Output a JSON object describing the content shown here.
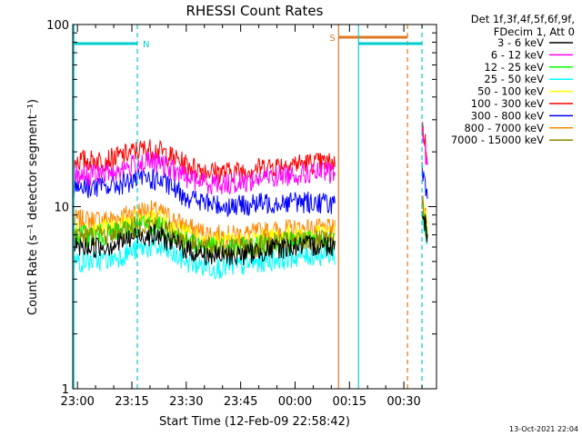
{
  "chart_data": {
    "type": "line",
    "title": "RHESSI Count Rates",
    "xlabel": "Start Time (12-Feb-09 22:58:42)",
    "ylabel": "Count Rate (s⁻¹ detector segment⁻¹)",
    "y_scale": "log",
    "ylim": [
      1,
      100
    ],
    "xlim": [
      "22:58:42",
      "00:39:00"
    ],
    "x_ticks": [
      "23:00",
      "23:15",
      "23:30",
      "23:45",
      "00:00",
      "00:15",
      "00:30"
    ],
    "y_ticks": [
      "1",
      "10",
      "100"
    ],
    "legend_header": [
      "Det 1f,3f,4f,5f,6f,9f,",
      "FDecim 1, Att 0"
    ],
    "legend_position": "right",
    "date_stamp": "13-Oct-2021 22:04",
    "series": [
      {
        "name": "3 - 6 keV",
        "color": "#000000",
        "level_start": 6.0,
        "level_end": 6.2
      },
      {
        "name": "6 - 12 keV",
        "color": "#ff00ff",
        "level_start": 15.0,
        "level_end": 15.5
      },
      {
        "name": "12 - 25 keV",
        "color": "#00ff00",
        "level_start": 7.0,
        "level_end": 6.5
      },
      {
        "name": "25 - 50 keV",
        "color": "#00ffff",
        "level_start": 5.0,
        "level_end": 5.5
      },
      {
        "name": "50 - 100 keV",
        "color": "#ffff00",
        "level_start": 7.5,
        "level_end": 7.0
      },
      {
        "name": "100 - 300 keV",
        "color": "#ff0000",
        "level_start": 18.0,
        "level_end": 17.5
      },
      {
        "name": "300 - 800 keV",
        "color": "#0000ff",
        "level_start": 13.0,
        "level_end": 10.5
      },
      {
        "name": "800 - 7000 keV",
        "color": "#ff8800",
        "level_start": 8.5,
        "level_end": 7.5
      },
      {
        "name": "7000 - 15000 keV",
        "color": "#888800",
        "level_start": 7.0,
        "level_end": 6.5
      }
    ],
    "flags": [
      {
        "label": "N",
        "color": "#00cccc",
        "start": "22:59:00",
        "end": "23:16:30"
      },
      {
        "label": "S",
        "color": "#e07820",
        "start": "00:12:00",
        "end": "00:31:00"
      },
      {
        "label": "",
        "color": "#00cccc",
        "start": "00:17:30",
        "end": "00:35:00"
      }
    ]
  }
}
